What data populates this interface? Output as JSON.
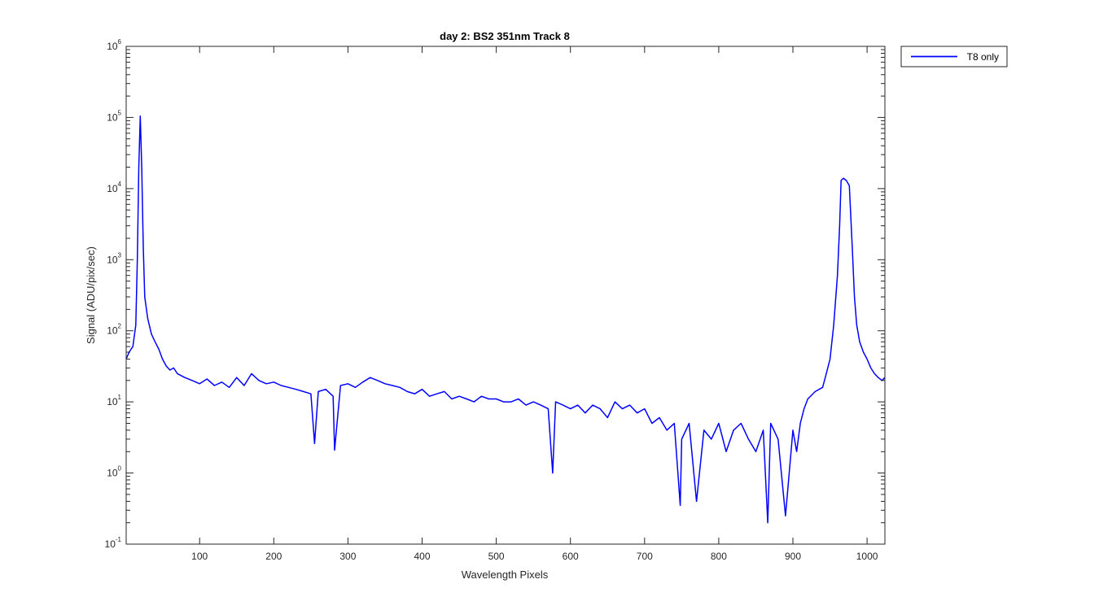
{
  "colors": {
    "series": "#0000ff",
    "axes": "#262626",
    "background": "#ffffff"
  },
  "chart_data": {
    "type": "line",
    "title": "day 2: BS2  351nm  Track 8",
    "xlabel": "Wavelength Pixels",
    "ylabel": "Signal (ADU/pix/sec)",
    "xlim": [
      1,
      1024
    ],
    "ylim": [
      0.1,
      1000000
    ],
    "yscale": "log",
    "grid": false,
    "legend_position": "outside-top-right",
    "xticks": [
      100,
      200,
      300,
      400,
      500,
      600,
      700,
      800,
      900,
      1000
    ],
    "xtick_labels": [
      "100",
      "200",
      "300",
      "400",
      "500",
      "600",
      "700",
      "800",
      "900",
      "1000"
    ],
    "yticks": [
      {
        "value": 0.1,
        "base": "10",
        "exp": "-1"
      },
      {
        "value": 1,
        "base": "10",
        "exp": "0"
      },
      {
        "value": 10,
        "base": "10",
        "exp": "1"
      },
      {
        "value": 100,
        "base": "10",
        "exp": "2"
      },
      {
        "value": 1000,
        "base": "10",
        "exp": "3"
      },
      {
        "value": 10000,
        "base": "10",
        "exp": "4"
      },
      {
        "value": 100000,
        "base": "10",
        "exp": "5"
      },
      {
        "value": 1000000,
        "base": "10",
        "exp": "6"
      }
    ],
    "series": [
      {
        "name": "T8 only",
        "color": "#0000ff",
        "x": [
          1,
          5,
          10,
          14,
          16,
          18,
          20,
          22,
          24,
          26,
          30,
          35,
          40,
          45,
          50,
          55,
          60,
          65,
          70,
          80,
          90,
          100,
          110,
          120,
          130,
          140,
          150,
          160,
          170,
          180,
          190,
          200,
          210,
          220,
          230,
          240,
          250,
          255,
          260,
          270,
          280,
          282,
          290,
          300,
          310,
          320,
          330,
          340,
          350,
          360,
          370,
          380,
          390,
          400,
          410,
          420,
          430,
          440,
          450,
          460,
          470,
          480,
          490,
          500,
          510,
          520,
          530,
          540,
          550,
          560,
          570,
          576,
          580,
          590,
          600,
          610,
          620,
          630,
          640,
          650,
          660,
          670,
          680,
          690,
          700,
          710,
          720,
          730,
          740,
          748,
          750,
          760,
          770,
          780,
          790,
          800,
          810,
          820,
          830,
          840,
          850,
          860,
          866,
          870,
          880,
          890,
          900,
          905,
          910,
          915,
          920,
          930,
          940,
          945,
          950,
          955,
          960,
          963,
          965,
          968,
          972,
          976,
          980,
          983,
          986,
          990,
          995,
          1000,
          1005,
          1010,
          1015,
          1020,
          1024
        ],
        "y": [
          40,
          50,
          60,
          120,
          1000,
          20000,
          105000,
          20000,
          1500,
          300,
          150,
          90,
          70,
          55,
          40,
          32,
          28,
          30,
          25,
          22,
          20,
          18,
          21,
          17,
          19,
          16,
          22,
          17,
          25,
          20,
          18,
          19,
          17,
          16,
          15,
          14,
          13,
          2.6,
          14,
          15,
          12,
          2.1,
          17,
          18,
          16,
          19,
          22,
          20,
          18,
          17,
          16,
          14,
          13,
          15,
          12,
          13,
          14,
          11,
          12,
          11,
          10,
          12,
          11,
          11,
          10,
          10,
          11,
          9,
          10,
          9,
          8,
          1.0,
          10,
          9,
          8,
          9,
          7,
          9,
          8,
          6,
          10,
          8,
          9,
          7,
          8,
          5,
          6,
          4,
          5,
          0.35,
          3,
          5,
          0.4,
          4,
          3,
          5,
          2,
          4,
          5,
          3,
          2,
          4,
          0.2,
          5,
          3,
          0.25,
          4,
          2,
          5,
          8,
          11,
          14,
          16,
          25,
          40,
          120,
          600,
          3000,
          13000,
          14000,
          13000,
          11000,
          1500,
          300,
          120,
          70,
          50,
          40,
          30,
          25,
          22,
          20,
          22
        ]
      }
    ]
  }
}
